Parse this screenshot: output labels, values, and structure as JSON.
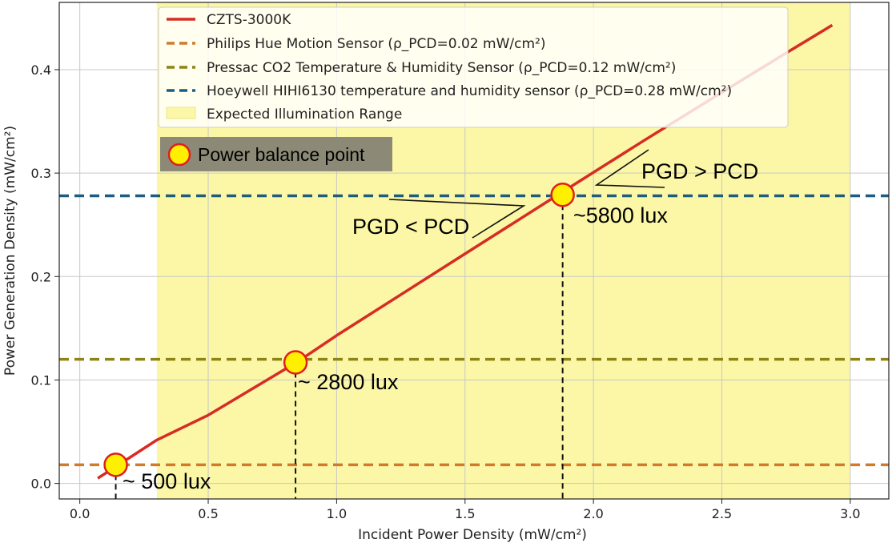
{
  "chart_data": {
    "type": "line",
    "xlabel": "Incident Power Density (mW/cm²)",
    "ylabel": "Power Generation Density (mW/cm²)",
    "xlim": [
      -0.08,
      3.15
    ],
    "ylim": [
      -0.015,
      0.465
    ],
    "x_ticks": [
      0.0,
      0.5,
      1.0,
      1.5,
      2.0,
      2.5,
      3.0
    ],
    "x_tick_labels": [
      "0.0",
      "0.5",
      "1.0",
      "1.5",
      "2.0",
      "2.5",
      "3.0"
    ],
    "y_ticks": [
      0.0,
      0.1,
      0.2,
      0.3,
      0.4
    ],
    "y_tick_labels": [
      "0.0",
      "0.1",
      "0.2",
      "0.3",
      "0.4"
    ],
    "grid": true,
    "legend_position": "top",
    "series": [
      {
        "name": "CZTS-3000K",
        "color": "#d62c24",
        "x": [
          0.07,
          0.3,
          0.5,
          0.85,
          1.0,
          1.5,
          1.9,
          2.2,
          2.5,
          2.75,
          2.93
        ],
        "y": [
          0.005,
          0.042,
          0.066,
          0.118,
          0.143,
          0.222,
          0.285,
          0.332,
          0.378,
          0.416,
          0.443
        ]
      }
    ],
    "hlines": [
      {
        "name": "Philips Hue Motion Sensor (ρ_PCD=0.02 mW/cm²)",
        "y": 0.018,
        "color": "#d27a2c"
      },
      {
        "name": "Pressac CO2 Temperature & Humidity Sensor (ρ_PCD=0.12 mW/cm²)",
        "y": 0.12,
        "color": "#8e8415"
      },
      {
        "name": "Hoeywell HIHI6130 temperature and humidity sensor (ρ_PCD=0.28 mW/cm²)",
        "y": 0.278,
        "color": "#1c5c80"
      }
    ],
    "shaded_region": {
      "name": "Expected Illumination Range",
      "x_range": [
        0.3,
        3.0
      ],
      "color": "#fbf7a6"
    },
    "balance_points": [
      {
        "x": 0.14,
        "y": 0.018,
        "label": "~ 500 lux"
      },
      {
        "x": 0.84,
        "y": 0.117,
        "label": "~ 2800 lux"
      },
      {
        "x": 1.88,
        "y": 0.279,
        "label": "~5800 lux"
      }
    ],
    "annotations": {
      "power_balance_label": "Power balance point",
      "pgd_less": "PGD < PCD",
      "pgd_greater": "PGD > PCD"
    },
    "legend_colors": {
      "czts": "#d62c24",
      "philips": "#d27a2c",
      "pressac": "#8e8415",
      "honeywell": "#1c5c80",
      "shade": "#fbf7a6"
    }
  }
}
